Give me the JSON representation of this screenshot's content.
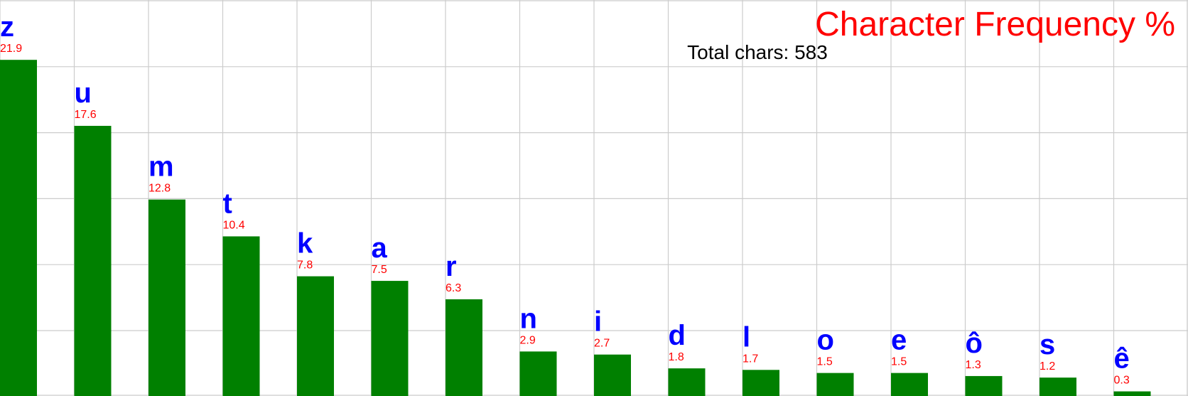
{
  "chart_data": {
    "type": "bar",
    "title": "Character Frequency %",
    "subtitle": "Total chars: 583",
    "categories": [
      "z",
      "u",
      "m",
      "t",
      "k",
      "a",
      "r",
      "n",
      "i",
      "d",
      "l",
      "o",
      "e",
      "ô",
      "s",
      "ê"
    ],
    "values": [
      21.9,
      17.6,
      12.8,
      10.4,
      7.8,
      7.5,
      6.3,
      2.9,
      2.7,
      1.8,
      1.7,
      1.5,
      1.5,
      1.3,
      1.2,
      0.3
    ],
    "value_labels": [
      "21.9",
      "17.6",
      "12.8",
      "10.4",
      "7.8",
      "7.5",
      "6.3",
      "2.9",
      "2.7",
      "1.8",
      "1.7",
      "1.5",
      "1.5",
      "1.3",
      "1.2",
      "0.3"
    ],
    "xlabel": "",
    "ylabel": "",
    "ylim": [
      0,
      25.8
    ],
    "grid": true,
    "legend": "none",
    "colors": {
      "bar": "#008000",
      "category_label": "#0000ff",
      "value_label": "#ff0000",
      "title": "#ff0000",
      "subtitle": "#000000",
      "grid": "#cccccc"
    }
  }
}
